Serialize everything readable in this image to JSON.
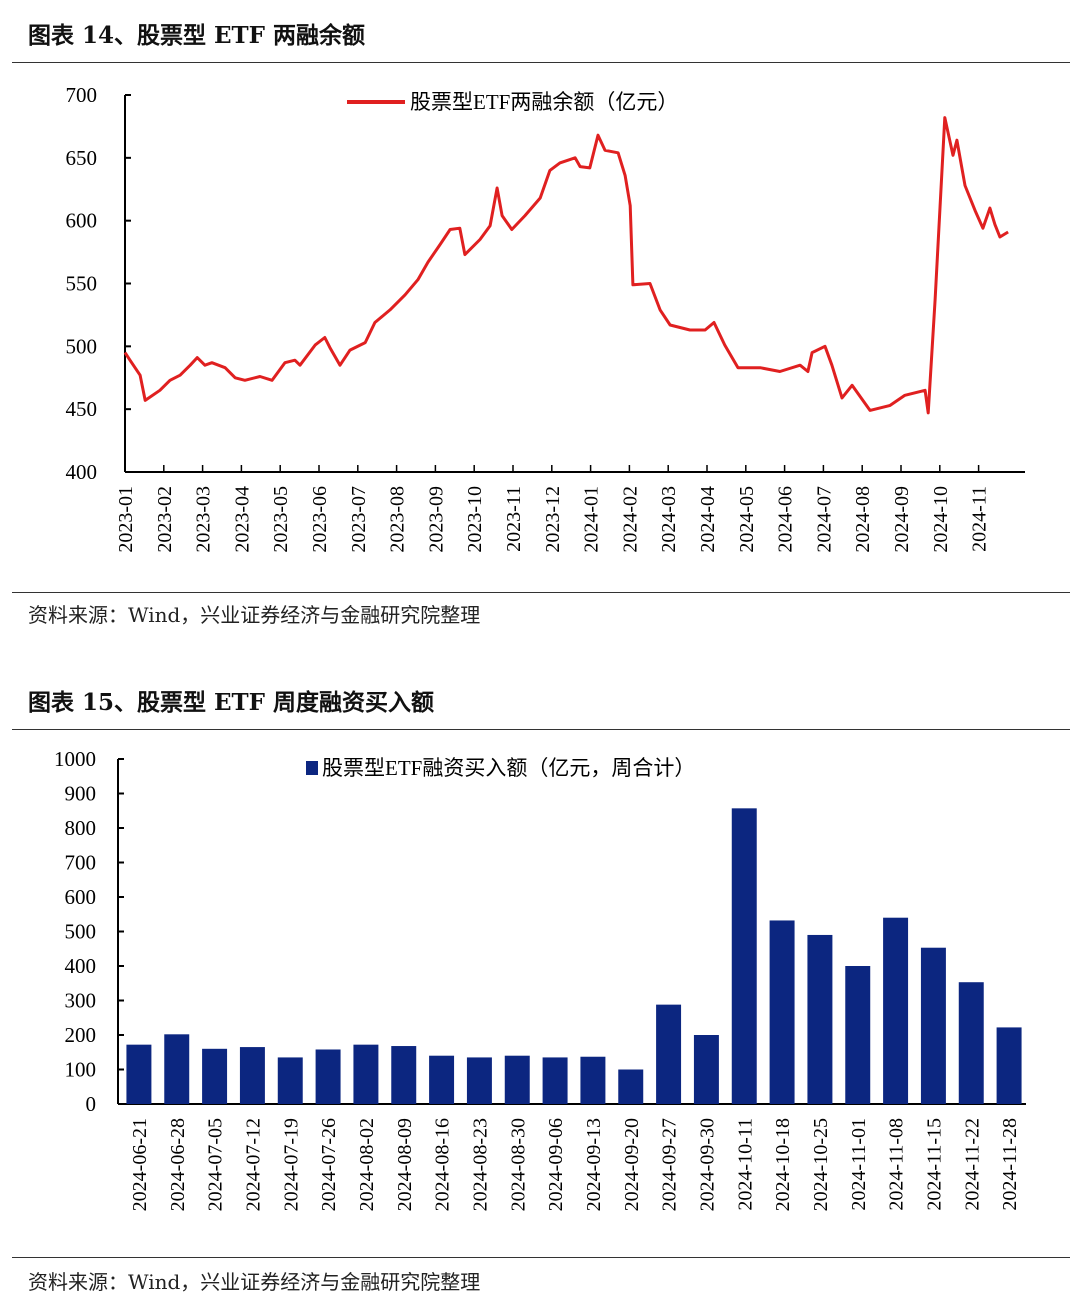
{
  "figure14": {
    "title": "图表 14、股票型 ETF 两融余额",
    "source": "资料来源：Wind，兴业证券经济与金融研究院整理"
  },
  "figure15": {
    "title": "图表 15、股票型 ETF 周度融资买入额",
    "source": "资料来源：Wind，兴业证券经济与金融研究院整理"
  },
  "chart_data": [
    {
      "type": "line",
      "title": "",
      "legend": "股票型ETF两融余额（亿元）",
      "legend_position": "top-center",
      "color": "#e02020",
      "ylim": [
        400,
        700
      ],
      "yticks": [
        400,
        450,
        500,
        550,
        600,
        650,
        700
      ],
      "x_unit": "months since 2023-01",
      "xlim": [
        0,
        23.2
      ],
      "xticks": [
        "2023-01",
        "2023-02",
        "2023-03",
        "2023-04",
        "2023-05",
        "2023-06",
        "2023-07",
        "2023-08",
        "2023-09",
        "2023-10",
        "2023-11",
        "2023-12",
        "2024-01",
        "2024-02",
        "2024-03",
        "2024-04",
        "2024-05",
        "2024-06",
        "2024-07",
        "2024-08",
        "2024-09",
        "2024-10",
        "2024-11"
      ],
      "points": [
        [
          0,
          495
        ],
        [
          0.13,
          489
        ],
        [
          0.39,
          477
        ],
        [
          0.52,
          457
        ],
        [
          0.9,
          465
        ],
        [
          1.16,
          473
        ],
        [
          1.42,
          477
        ],
        [
          1.68,
          485
        ],
        [
          1.86,
          491
        ],
        [
          2.06,
          485
        ],
        [
          2.24,
          487
        ],
        [
          2.58,
          483
        ],
        [
          2.84,
          475
        ],
        [
          3.09,
          473
        ],
        [
          3.48,
          476
        ],
        [
          3.79,
          473
        ],
        [
          4.12,
          487
        ],
        [
          4.38,
          489
        ],
        [
          4.51,
          485
        ],
        [
          4.9,
          501
        ],
        [
          5.15,
          507
        ],
        [
          5.28,
          499
        ],
        [
          5.54,
          485
        ],
        [
          5.8,
          497
        ],
        [
          6.19,
          503
        ],
        [
          6.44,
          519
        ],
        [
          6.83,
          529
        ],
        [
          7.22,
          541
        ],
        [
          7.55,
          553
        ],
        [
          7.81,
          567
        ],
        [
          8.12,
          581
        ],
        [
          8.38,
          593
        ],
        [
          8.63,
          594
        ],
        [
          8.76,
          573
        ],
        [
          9.15,
          585
        ],
        [
          9.41,
          596
        ],
        [
          9.59,
          626
        ],
        [
          9.72,
          604
        ],
        [
          9.97,
          593
        ],
        [
          10.31,
          604
        ],
        [
          10.7,
          618
        ],
        [
          10.95,
          640
        ],
        [
          11.21,
          646
        ],
        [
          11.6,
          650
        ],
        [
          11.73,
          643
        ],
        [
          11.98,
          642
        ],
        [
          12.19,
          668
        ],
        [
          12.37,
          656
        ],
        [
          12.71,
          654
        ],
        [
          12.89,
          636
        ],
        [
          13.02,
          612
        ],
        [
          13.09,
          549
        ],
        [
          13.53,
          550
        ],
        [
          13.79,
          529
        ],
        [
          14.05,
          517
        ],
        [
          14.56,
          513
        ],
        [
          14.95,
          513
        ],
        [
          15.18,
          519
        ],
        [
          15.46,
          501
        ],
        [
          15.8,
          483
        ],
        [
          16.37,
          483
        ],
        [
          16.88,
          480
        ],
        [
          17.4,
          485
        ],
        [
          17.6,
          480
        ],
        [
          17.71,
          495
        ],
        [
          18.04,
          500
        ],
        [
          18.22,
          485
        ],
        [
          18.48,
          459
        ],
        [
          18.74,
          469
        ],
        [
          19.2,
          449
        ],
        [
          19.72,
          453
        ],
        [
          20.1,
          461
        ],
        [
          20.62,
          465
        ],
        [
          20.7,
          447
        ],
        [
          20.88,
          537
        ],
        [
          21.13,
          682
        ],
        [
          21.34,
          652
        ],
        [
          21.44,
          664
        ],
        [
          21.65,
          628
        ],
        [
          21.91,
          608
        ],
        [
          22.11,
          594
        ],
        [
          22.29,
          610
        ],
        [
          22.42,
          597
        ],
        [
          22.55,
          587
        ],
        [
          22.76,
          591
        ]
      ]
    },
    {
      "type": "bar",
      "title": "",
      "legend": "股票型ETF融资买入额（亿元，周合计）",
      "legend_position": "top-center",
      "color": "#0c2680",
      "ylim": [
        0,
        1000
      ],
      "yticks": [
        0,
        100,
        200,
        300,
        400,
        500,
        600,
        700,
        800,
        900,
        1000
      ],
      "categories": [
        "2024-06-21",
        "2024-06-28",
        "2024-07-05",
        "2024-07-12",
        "2024-07-19",
        "2024-07-26",
        "2024-08-02",
        "2024-08-09",
        "2024-08-16",
        "2024-08-23",
        "2024-08-30",
        "2024-09-06",
        "2024-09-13",
        "2024-09-20",
        "2024-09-27",
        "2024-09-30",
        "2024-10-11",
        "2024-10-18",
        "2024-10-25",
        "2024-11-01",
        "2024-11-08",
        "2024-11-15",
        "2024-11-22",
        "2024-11-28"
      ],
      "values": [
        172,
        202,
        160,
        165,
        135,
        158,
        172,
        168,
        140,
        135,
        140,
        135,
        137,
        100,
        288,
        200,
        857,
        532,
        490,
        400,
        540,
        453,
        353,
        222
      ]
    }
  ]
}
